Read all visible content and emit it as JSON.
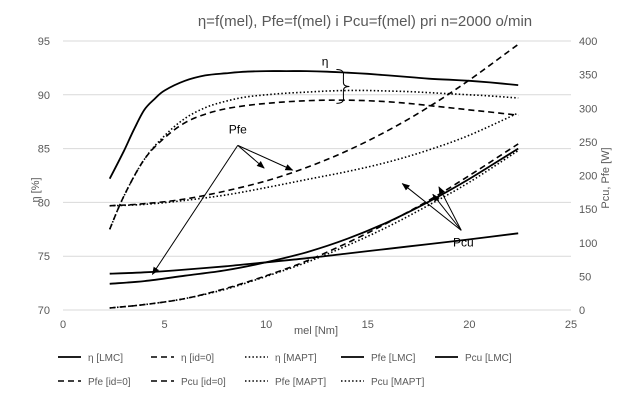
{
  "chart_data": {
    "type": "line",
    "title": "η=f(mel), Pfe=f(mel) i Pcu=f(mel) pri n=2000 o/min",
    "xlabel": "mel [Nm]",
    "ylabel_left": "η [%]",
    "ylabel_right": "Pcu, Pfe [W]",
    "xlim": [
      0,
      25
    ],
    "ylim_left": [
      70,
      95
    ],
    "ylim_right": [
      0,
      400
    ],
    "x_ticks": [
      0,
      5,
      10,
      15,
      20,
      25
    ],
    "y_left_ticks": [
      70,
      75,
      80,
      85,
      90,
      95
    ],
    "y_right_ticks": [
      0,
      50,
      100,
      150,
      200,
      250,
      300,
      350,
      400
    ],
    "grid": true,
    "legend_position": "bottom",
    "series": [
      {
        "name": "η [LMC]",
        "axis": "left",
        "style": "solid",
        "x": [
          2.3,
          3,
          3.5,
          4,
          4.5,
          5,
          6,
          7,
          8,
          9,
          10,
          11,
          12,
          13,
          14,
          15,
          16,
          17,
          18,
          19,
          20,
          21,
          22.4
        ],
        "y": [
          82.2,
          84.8,
          86.8,
          88.6,
          89.6,
          90.4,
          91.3,
          91.8,
          92.0,
          92.15,
          92.2,
          92.2,
          92.2,
          92.15,
          92.05,
          91.95,
          91.8,
          91.65,
          91.5,
          91.4,
          91.3,
          91.15,
          90.9
        ]
      },
      {
        "name": "η [id=0]",
        "axis": "left",
        "style": "dashed",
        "x": [
          2.3,
          3,
          4,
          5,
          6,
          7,
          8,
          9,
          10,
          11,
          12,
          13,
          14,
          15,
          16,
          17,
          18,
          19,
          20,
          21,
          22.4
        ],
        "y": [
          77.5,
          80.6,
          84.0,
          86.0,
          87.4,
          88.2,
          88.7,
          89.0,
          89.2,
          89.35,
          89.45,
          89.5,
          89.5,
          89.45,
          89.35,
          89.2,
          89.0,
          88.8,
          88.6,
          88.4,
          88.1
        ]
      },
      {
        "name": "η [MAPT]",
        "axis": "left",
        "style": "dotted",
        "x": [
          2.3,
          3,
          4,
          5,
          6,
          7,
          8,
          9,
          10,
          11,
          12,
          13,
          14,
          15,
          16,
          17,
          18,
          19,
          20,
          21,
          22.4
        ],
        "y": [
          77.5,
          80.6,
          84.0,
          86.2,
          87.8,
          88.8,
          89.4,
          89.8,
          90.0,
          90.15,
          90.25,
          90.35,
          90.4,
          90.4,
          90.35,
          90.3,
          90.2,
          90.1,
          90.0,
          89.9,
          89.7
        ]
      },
      {
        "name": "Pfe [LMC]",
        "axis": "right",
        "style": "solid",
        "x": [
          2.3,
          4,
          6,
          8,
          10,
          12,
          14,
          16,
          18,
          20,
          22.4
        ],
        "y": [
          54,
          56,
          60,
          65,
          71,
          77,
          84,
          91,
          98,
          105,
          114
        ]
      },
      {
        "name": "Pcu [LMC]",
        "axis": "right",
        "style": "solid",
        "x": [
          2.3,
          4,
          6,
          8,
          10,
          12,
          14,
          16,
          18,
          20,
          22.4
        ],
        "y": [
          39,
          43,
          51,
          59,
          71,
          86,
          106,
          131,
          161,
          195,
          240
        ]
      },
      {
        "name": "Pfe [id=0]",
        "axis": "right",
        "style": "dashed",
        "x": [
          2.3,
          4,
          6,
          8,
          10,
          12,
          14,
          16,
          18,
          20,
          22.4
        ],
        "y": [
          155,
          158,
          165,
          177,
          192,
          212,
          237,
          267,
          302,
          342,
          395
        ]
      },
      {
        "name": "Pcu [id=0]",
        "axis": "right",
        "style": "dashed",
        "x": [
          2.3,
          4,
          6,
          8,
          10,
          12,
          14,
          16,
          18,
          20,
          22.4
        ],
        "y": [
          3,
          8,
          17,
          32,
          51,
          73,
          100,
          130,
          163,
          200,
          247
        ]
      },
      {
        "name": "Pfe [MAPT]",
        "axis": "right",
        "style": "dotted",
        "x": [
          2.3,
          4,
          6,
          8,
          10,
          12,
          14,
          16,
          18,
          20,
          22.4
        ],
        "y": [
          155,
          157,
          163,
          171,
          182,
          194,
          206,
          220,
          238,
          260,
          293
        ]
      },
      {
        "name": "Pcu [MAPT]",
        "axis": "right",
        "style": "dotted",
        "x": [
          2.3,
          4,
          6,
          8,
          10,
          12,
          14,
          16,
          18,
          20,
          22.4
        ],
        "y": [
          3,
          8,
          17,
          31,
          50,
          71,
          96,
          124,
          156,
          190,
          237
        ]
      }
    ],
    "annotations": [
      {
        "text": "η",
        "x": 12.9,
        "y_left": 92.7
      },
      {
        "text": "Pfe",
        "x": 8.6,
        "y_left": 86.4
      },
      {
        "text": "Pcu",
        "x": 19.7,
        "y_left": 75.9
      }
    ]
  }
}
